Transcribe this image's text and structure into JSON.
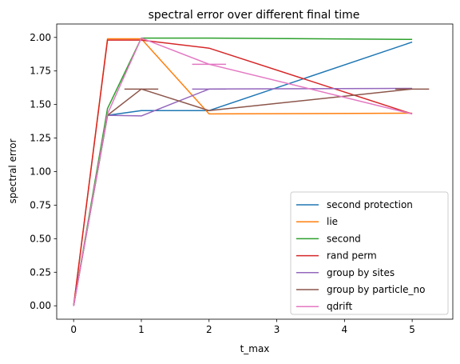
{
  "chart_data": {
    "type": "line",
    "title": "spectral error over different final time",
    "xlabel": "t_max",
    "ylabel": "spectral error",
    "xlim": [
      -0.25,
      5.6
    ],
    "ylim": [
      -0.1,
      2.1
    ],
    "xticks": [
      0,
      1,
      2,
      3,
      4,
      5
    ],
    "xtick_labels": [
      "0",
      "1",
      "2",
      "3",
      "4",
      "5"
    ],
    "yticks": [
      0.0,
      0.25,
      0.5,
      0.75,
      1.0,
      1.25,
      1.5,
      1.75,
      2.0
    ],
    "ytick_labels": [
      "0.00",
      "0.25",
      "0.50",
      "0.75",
      "1.00",
      "1.25",
      "1.50",
      "1.75",
      "2.00"
    ],
    "grid": false,
    "legend_position": "lower-right",
    "series": [
      {
        "name": "second protection",
        "color": "#1f77b4",
        "points": [
          [
            0,
            0.0
          ],
          [
            0.5,
            1.42
          ],
          [
            1,
            1.455
          ],
          [
            2,
            1.455
          ],
          [
            5,
            1.965
          ]
        ],
        "segments": []
      },
      {
        "name": "lie",
        "color": "#ff7f0e",
        "points": [
          [
            0,
            0.0
          ],
          [
            0.5,
            1.99
          ],
          [
            1,
            1.99
          ],
          [
            2,
            1.43
          ],
          [
            5,
            1.435
          ]
        ],
        "segments": []
      },
      {
        "name": "second",
        "color": "#2ca02c",
        "points": [
          [
            0,
            0.0
          ],
          [
            0.5,
            1.47
          ],
          [
            1,
            1.995
          ],
          [
            2,
            1.995
          ],
          [
            5,
            1.985
          ]
        ],
        "segments": []
      },
      {
        "name": "rand perm",
        "color": "#d62728",
        "points": [
          [
            0,
            0.0
          ],
          [
            0.5,
            1.98
          ],
          [
            1,
            1.98
          ],
          [
            2,
            1.92
          ],
          [
            5,
            1.43
          ]
        ],
        "segments": []
      },
      {
        "name": "group by sites",
        "color": "#9467bd",
        "points": [
          [
            0,
            0.0
          ],
          [
            0.5,
            1.42
          ],
          [
            1,
            1.415
          ],
          [
            2,
            1.615
          ],
          [
            5,
            1.62
          ]
        ],
        "segments": [
          [
            [
              1.75,
              1.615
            ],
            [
              2.25,
              1.615
            ]
          ]
        ]
      },
      {
        "name": "group by particle_no",
        "color": "#8c564b",
        "points": [
          [
            0,
            0.0
          ],
          [
            0.5,
            1.42
          ],
          [
            1,
            1.615
          ],
          [
            2,
            1.455
          ],
          [
            5,
            1.615
          ]
        ],
        "segments": [
          [
            [
              0.75,
              1.615
            ],
            [
              1.25,
              1.615
            ]
          ],
          [
            [
              4.75,
              1.615
            ],
            [
              5.25,
              1.615
            ]
          ]
        ]
      },
      {
        "name": "qdrift",
        "color": "#e377c2",
        "points": [
          [
            0,
            0.0
          ],
          [
            0.5,
            1.43
          ],
          [
            1,
            1.995
          ],
          [
            2,
            1.8
          ],
          [
            5,
            1.43
          ]
        ],
        "segments": [
          [
            [
              1.75,
              1.8
            ],
            [
              2.25,
              1.8
            ]
          ]
        ]
      }
    ]
  }
}
